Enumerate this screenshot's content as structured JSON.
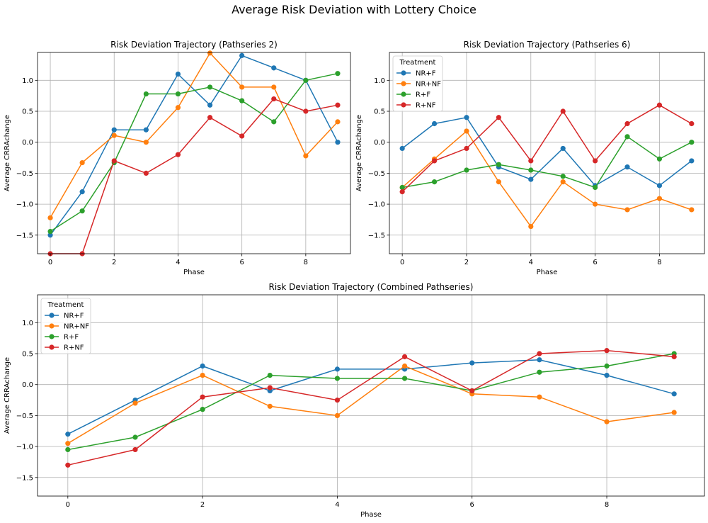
{
  "suptitle": "Average Risk Deviation with Lottery Choice",
  "colors": {
    "NR+F": "#1f77b4",
    "NR+NF": "#ff7f0e",
    "R+F": "#2ca02c",
    "R+NF": "#d62728"
  },
  "chart_data": [
    {
      "type": "line",
      "title": "Risk Deviation Trajectory (Pathseries 2)",
      "xlabel": "Phase",
      "ylabel": "Average CRRAchange",
      "xlim": [
        -0.4,
        9.4
      ],
      "ylim": [
        -1.8,
        1.45
      ],
      "xticks": [
        0,
        2,
        4,
        6,
        8
      ],
      "yticks": [
        -1.5,
        -1.0,
        -0.5,
        0.0,
        0.5,
        1.0
      ],
      "grid": true,
      "legend": null,
      "x": [
        0,
        1,
        2,
        3,
        4,
        5,
        6,
        7,
        8,
        9
      ],
      "series": [
        {
          "name": "NR+F",
          "values": [
            -1.5,
            -0.8,
            0.2,
            0.2,
            1.1,
            0.6,
            1.4,
            1.2,
            1.0,
            0.0
          ]
        },
        {
          "name": "NR+NF",
          "values": [
            -1.22,
            -0.33,
            0.11,
            0.0,
            0.56,
            1.44,
            0.89,
            0.89,
            -0.22,
            0.33
          ]
        },
        {
          "name": "R+F",
          "values": [
            -1.44,
            -1.11,
            -0.33,
            0.78,
            0.78,
            0.89,
            0.67,
            0.33,
            1.0,
            1.11
          ]
        },
        {
          "name": "R+NF",
          "values": [
            -1.8,
            -1.8,
            -0.3,
            -0.5,
            -0.2,
            0.4,
            0.1,
            0.7,
            0.5,
            0.6
          ]
        }
      ]
    },
    {
      "type": "line",
      "title": "Risk Deviation Trajectory (Pathseries 6)",
      "xlabel": "Phase",
      "ylabel": "Average CRRAchange",
      "xlim": [
        -0.4,
        9.4
      ],
      "ylim": [
        -1.8,
        1.45
      ],
      "xticks": [
        0,
        2,
        4,
        6,
        8
      ],
      "yticks": [
        -1.5,
        -1.0,
        -0.5,
        0.0,
        0.5,
        1.0
      ],
      "grid": true,
      "legend": "upper left",
      "legend_title": "Treatment",
      "x": [
        0,
        1,
        2,
        3,
        4,
        5,
        6,
        7,
        8,
        9
      ],
      "series": [
        {
          "name": "NR+F",
          "values": [
            -0.1,
            0.3,
            0.4,
            -0.4,
            -0.6,
            -0.1,
            -0.7,
            -0.4,
            -0.7,
            -0.3
          ]
        },
        {
          "name": "NR+NF",
          "values": [
            -0.73,
            -0.27,
            0.18,
            -0.64,
            -1.36,
            -0.64,
            -1.0,
            -1.09,
            -0.91,
            -1.09
          ]
        },
        {
          "name": "R+F",
          "values": [
            -0.73,
            -0.64,
            -0.45,
            -0.36,
            -0.45,
            -0.55,
            -0.73,
            0.09,
            -0.27,
            0.0
          ]
        },
        {
          "name": "R+NF",
          "values": [
            -0.8,
            -0.3,
            -0.1,
            0.4,
            -0.3,
            0.5,
            -0.3,
            0.3,
            0.6,
            0.3
          ]
        }
      ]
    },
    {
      "type": "line",
      "title": "Risk Deviation Trajectory (Combined Pathseries)",
      "xlabel": "Phase",
      "ylabel": "Average CRRAchange",
      "xlim": [
        -0.45,
        9.45
      ],
      "ylim": [
        -1.8,
        1.45
      ],
      "xticks": [
        0,
        2,
        4,
        6,
        8
      ],
      "yticks": [
        -1.5,
        -1.0,
        -0.5,
        0.0,
        0.5,
        1.0
      ],
      "grid": true,
      "legend": "upper left",
      "legend_title": "Treatment",
      "x": [
        0,
        1,
        2,
        3,
        4,
        5,
        6,
        7,
        8,
        9
      ],
      "series": [
        {
          "name": "NR+F",
          "values": [
            -0.8,
            -0.25,
            0.3,
            -0.1,
            0.25,
            0.25,
            0.35,
            0.4,
            0.15,
            -0.15
          ]
        },
        {
          "name": "NR+NF",
          "values": [
            -0.95,
            -0.3,
            0.15,
            -0.35,
            -0.5,
            0.3,
            -0.15,
            -0.2,
            -0.6,
            -0.45
          ]
        },
        {
          "name": "R+F",
          "values": [
            -1.05,
            -0.85,
            -0.4,
            0.15,
            0.1,
            0.1,
            -0.1,
            0.2,
            0.3,
            0.5
          ]
        },
        {
          "name": "R+NF",
          "values": [
            -1.3,
            -1.05,
            -0.2,
            -0.05,
            -0.25,
            0.45,
            -0.1,
            0.5,
            0.55,
            0.45
          ]
        }
      ]
    }
  ]
}
